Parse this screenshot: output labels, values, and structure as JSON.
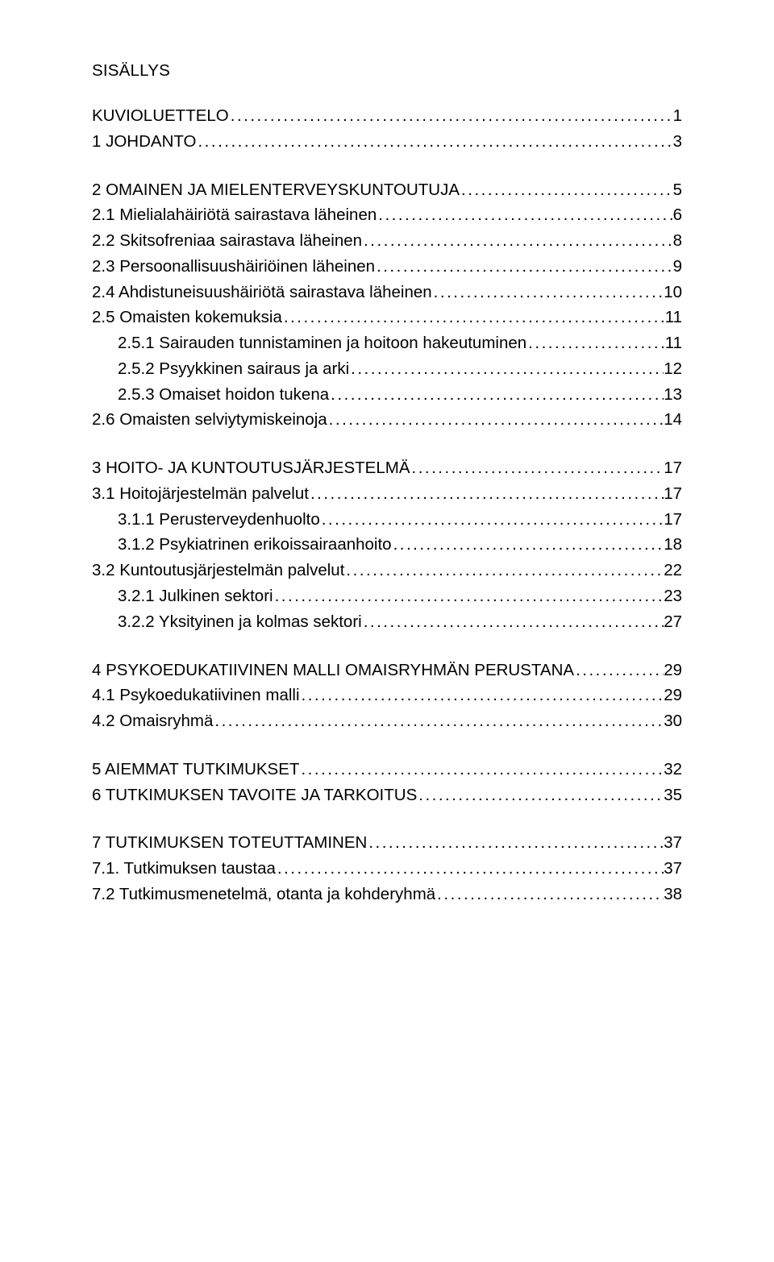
{
  "heading": "SISÄLLYS",
  "blocks": [
    {
      "items": [
        {
          "label": "KUVIOLUETTELO",
          "page": "1",
          "indent": 0
        },
        {
          "label": "1 JOHDANTO",
          "page": "3",
          "indent": 0
        }
      ]
    },
    {
      "items": [
        {
          "label": "2 OMAINEN JA MIELENTERVEYSKUNTOUTUJA",
          "page": "5",
          "indent": 0
        },
        {
          "label": "2.1 Mielialahäiriötä sairastava läheinen",
          "page": "6",
          "indent": 0
        },
        {
          "label": "2.2 Skitsofreniaa sairastava läheinen",
          "page": "8",
          "indent": 0
        },
        {
          "label": "2.3 Persoonallisuushäiriöinen läheinen",
          "page": "9",
          "indent": 0
        },
        {
          "label": "2.4 Ahdistuneisuushäiriötä sairastava läheinen",
          "page": "10",
          "indent": 0
        },
        {
          "label": "2.5 Omaisten kokemuksia",
          "page": "11",
          "indent": 0
        },
        {
          "label": "2.5.1 Sairauden tunnistaminen ja hoitoon hakeutuminen",
          "page": "11",
          "indent": 1
        },
        {
          "label": "2.5.2 Psyykkinen sairaus ja arki",
          "page": "12",
          "indent": 1
        },
        {
          "label": "2.5.3 Omaiset hoidon tukena",
          "page": "13",
          "indent": 1
        },
        {
          "label": "2.6 Omaisten selviytymiskeinoja",
          "page": "14",
          "indent": 0
        }
      ]
    },
    {
      "items": [
        {
          "label": "3 HOITO- JA KUNTOUTUSJÄRJESTELMÄ",
          "page": "17",
          "indent": 0
        },
        {
          "label": "3.1 Hoitojärjestelmän palvelut",
          "page": "17",
          "indent": 0
        },
        {
          "label": "3.1.1 Perusterveydenhuolto",
          "page": "17",
          "indent": 1
        },
        {
          "label": "3.1.2 Psykiatrinen erikoissairaanhoito",
          "page": "18",
          "indent": 1
        },
        {
          "label": "3.2 Kuntoutusjärjestelmän palvelut",
          "page": "22",
          "indent": 0
        },
        {
          "label": "3.2.1 Julkinen sektori",
          "page": "23",
          "indent": 1
        },
        {
          "label": "3.2.2 Yksityinen ja kolmas sektori",
          "page": "27",
          "indent": 1
        }
      ]
    },
    {
      "items": [
        {
          "label": "4 PSYKOEDUKATIIVINEN MALLI OMAISRYHMÄN PERUSTANA",
          "page": "29",
          "indent": 0
        },
        {
          "label": "4.1 Psykoedukatiivinen malli",
          "page": "29",
          "indent": 0
        },
        {
          "label": "4.2 Omaisryhmä",
          "page": "30",
          "indent": 0
        }
      ]
    },
    {
      "items": [
        {
          "label": "5 AIEMMAT TUTKIMUKSET",
          "page": "32",
          "indent": 0
        },
        {
          "label": "6 TUTKIMUKSEN TAVOITE JA TARKOITUS",
          "page": "35",
          "indent": 0
        }
      ]
    },
    {
      "items": [
        {
          "label": "7 TUTKIMUKSEN TOTEUTTAMINEN",
          "page": "37",
          "indent": 0
        },
        {
          "label": "7.1. Tutkimuksen taustaa",
          "page": "37",
          "indent": 0
        },
        {
          "label": "7.2 Tutkimusmenetelmä, otanta ja kohderyhmä",
          "page": "38",
          "indent": 0
        }
      ]
    }
  ]
}
